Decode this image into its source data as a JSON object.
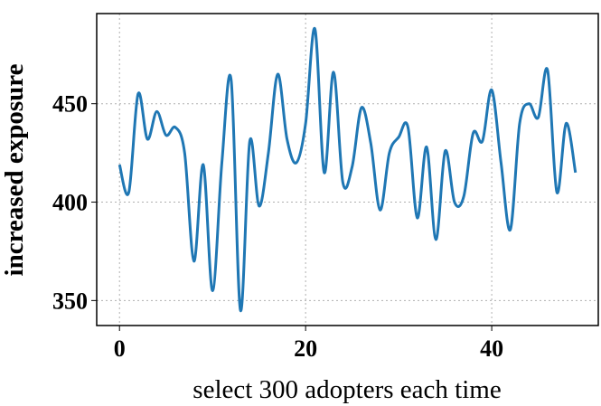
{
  "chart_data": {
    "type": "line",
    "x_label": "select 300 adopters each time",
    "y_label": "increased exposure",
    "x": [
      0,
      1,
      2,
      3,
      4,
      5,
      6,
      7,
      8,
      9,
      10,
      11,
      12,
      13,
      14,
      15,
      16,
      17,
      18,
      19,
      20,
      21,
      22,
      23,
      24,
      25,
      26,
      27,
      28,
      29,
      30,
      31,
      32,
      33,
      34,
      35,
      36,
      37,
      38,
      39,
      40,
      41,
      42,
      43,
      44,
      45,
      46,
      47,
      48,
      49
    ],
    "series": [
      {
        "name": "increased exposure",
        "color": "#1f77b4",
        "values": [
          419,
          405,
          455,
          432,
          446,
          434,
          438,
          425,
          370,
          419,
          355,
          420,
          462,
          345,
          431,
          398,
          425,
          465,
          432,
          420,
          440,
          488,
          415,
          466,
          410,
          418,
          448,
          430,
          396,
          425,
          433,
          438,
          392,
          428,
          381,
          426,
          400,
          403,
          435,
          431,
          457,
          420,
          386,
          440,
          450,
          443,
          467,
          405,
          440,
          415
        ]
      }
    ],
    "xlim": [
      -2.45,
      51.45
    ],
    "xticks": [
      0,
      20,
      40
    ],
    "ylim": [
      337.3,
      495.8
    ],
    "yticks": [
      350,
      400,
      450
    ],
    "grid": true
  }
}
